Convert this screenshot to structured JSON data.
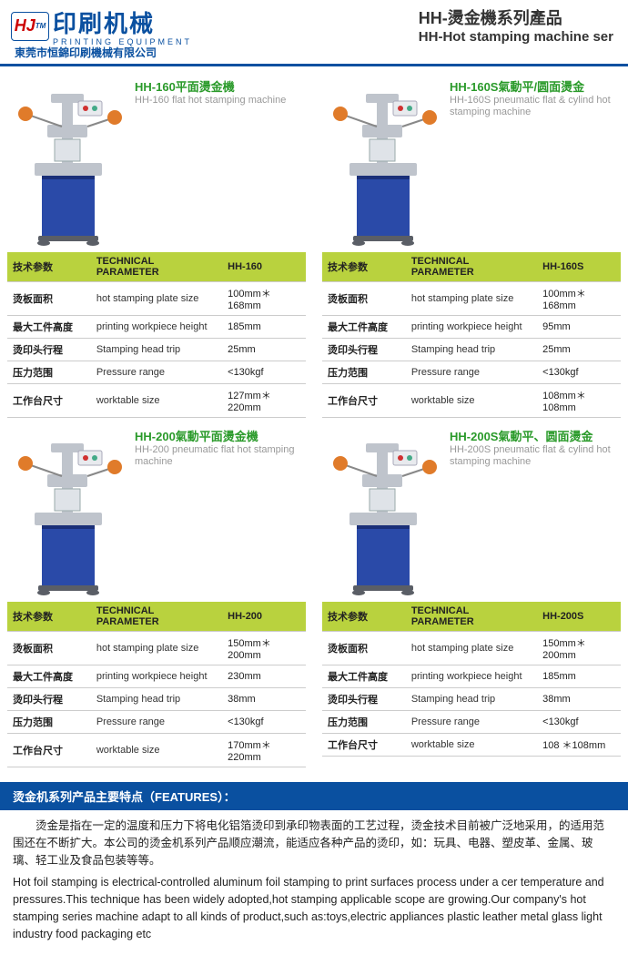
{
  "logo": {
    "chip": "HJ",
    "tm": "TM",
    "cn": "印刷机械",
    "en": "PRINTING EQUIPMENT"
  },
  "company": "東莞市恒錦印刷機械有限公司",
  "header": {
    "cn": "HH-燙金機系列產品",
    "en": "HH-Hot stamping machine ser"
  },
  "rows": [
    {
      "cn": "烫板面积",
      "en": "hot stamping plate size"
    },
    {
      "cn": "最大工件高度",
      "en": "printing workpiece height"
    },
    {
      "cn": "烫印头行程",
      "en": "Stamping head trip"
    },
    {
      "cn": "压力范围",
      "en": "Pressure range"
    },
    {
      "cn": "工作台尺寸",
      "en": "worktable size"
    }
  ],
  "spec_hd": {
    "cn": "技术参数",
    "en": "TECHNICAL PARAMETER"
  },
  "products": [
    {
      "title_cn": "HH-160平面燙金機",
      "title_en": "HH-160 flat hot stamping machine",
      "model": "HH-160",
      "vals": [
        "100mm＊168mm",
        "185mm",
        "25mm",
        "<130kgf",
        "127mm＊220mm"
      ]
    },
    {
      "title_cn": "HH-160S氣動平/圆面燙金",
      "title_en": "HH-160S pneumatic flat & cylind hot stamping machine",
      "model": "HH-160S",
      "vals": [
        "100mm＊168mm",
        "95mm",
        "25mm",
        "<130kgf",
        "108mm＊108mm"
      ]
    },
    {
      "title_cn": "HH-200氣動平面燙金機",
      "title_en": "HH-200 pneumatic flat hot stamping machine",
      "model": "HH-200",
      "vals": [
        "150mm＊200mm",
        "230mm",
        "38mm",
        "<130kgf",
        "170mm＊220mm"
      ]
    },
    {
      "title_cn": "HH-200S氣動平、圆面燙金",
      "title_en": "HH-200S pneumatic flat & cylind hot stamping machine",
      "model": "HH-200S",
      "vals": [
        "150mm＊200mm",
        "185mm",
        "38mm",
        "<130kgf",
        "108 ＊108mm"
      ]
    }
  ],
  "features": {
    "bar": "烫金机系列产品主要特点（FEATURES）：",
    "cn": "烫金是指在一定的温度和压力下将电化铝箔烫印到承印物表面的工艺过程，烫金技术目前被广泛地采用，的适用范围还在不断扩大。本公司的烫金机系列产品顺应潮流，能适应各种产品的烫印，如：玩具、电器、塑皮革、金属、玻璃、轻工业及食品包装等等。",
    "en": "Hot foil stamping is electrical-controlled aluminum foil stamping to print surfaces process under a cer temperature and pressures.This technique has been widely adopted,hot stamping applicable scope are growing.Our company's hot stamping series machine adapt to all kinds of product,such as:toys,electric appliances plastic leather metal glass light industry food packaging etc"
  },
  "machine_colors": {
    "body": "#2a4aa8",
    "head": "#bfc4cc",
    "accent": "#e07b2a",
    "knob": "#d03030",
    "base": "#5a5e66"
  }
}
